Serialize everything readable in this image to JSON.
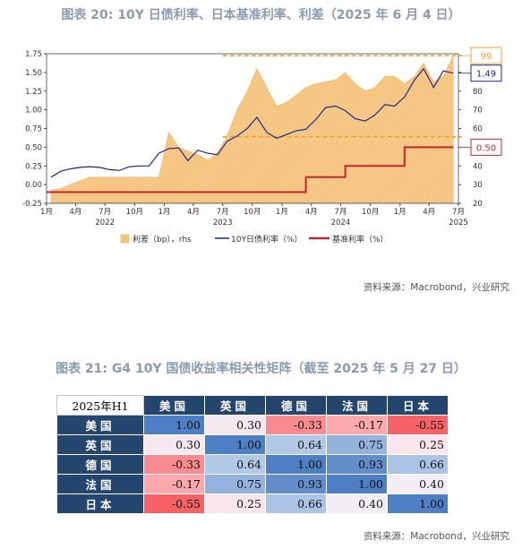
{
  "figure1": {
    "title": "图表 20: 10Y 日债利率、日本基准利率、利差（2025 年 6 月 4 日）",
    "source": "资料来源：Macrobond，兴业研究"
  },
  "figure2": {
    "title": "图表 21: G4 10Y 国债收益率相关性矩阵（截至 2025 年 5 月 27 日）",
    "source": "资料来源：Macrobond，兴业研究"
  },
  "chart_data": [
    {
      "type": "line",
      "x_axis": {
        "month_ticks": [
          "1月",
          "4月",
          "7月",
          "10月",
          "1月",
          "4月",
          "7月",
          "10月",
          "1月",
          "4月",
          "7月",
          "10月",
          "1月",
          "4月",
          "7月"
        ],
        "year_labels": [
          "2022",
          "2023",
          "2024",
          "2025"
        ],
        "range": [
          "2022-01",
          "2025-07"
        ]
      },
      "y_left": {
        "ticks": [
          "1.75",
          "1.50",
          "1.25",
          "1.00",
          "0.75",
          "0.50",
          "0.25",
          "0.00",
          "-0.25"
        ],
        "range": [
          -0.25,
          1.75
        ]
      },
      "y_right": {
        "ticks": [
          "90",
          "80",
          "70",
          "60",
          "50",
          "40",
          "30",
          "20"
        ],
        "range": [
          20,
          100
        ]
      },
      "series": [
        {
          "name": "利差（bp），rhs",
          "kind": "area",
          "axis": "right",
          "color": "#f5c47e",
          "x": [
            "2022-01",
            "2022-02",
            "2022-03",
            "2022-04",
            "2022-05",
            "2022-06",
            "2022-07",
            "2022-08",
            "2022-09",
            "2022-10",
            "2022-11",
            "2022-12",
            "2023-01",
            "2023-02",
            "2023-03",
            "2023-04",
            "2023-05",
            "2023-06",
            "2023-07",
            "2023-08",
            "2023-09",
            "2023-10",
            "2023-11",
            "2023-12",
            "2024-01",
            "2024-02",
            "2024-03",
            "2024-04",
            "2024-05",
            "2024-06",
            "2024-07",
            "2024-08",
            "2024-09",
            "2024-10",
            "2024-11",
            "2024-12",
            "2025-01",
            "2025-02",
            "2025-03",
            "2025-04",
            "2025-05",
            "2025-06"
          ],
          "values": [
            27,
            28,
            30,
            32,
            34,
            34,
            34,
            34,
            34,
            34,
            34,
            34,
            58,
            50,
            48,
            46,
            43,
            47,
            56,
            70,
            80,
            92,
            82,
            72,
            74,
            78,
            82,
            84,
            85,
            86,
            90,
            84,
            80,
            82,
            88,
            88,
            84,
            88,
            95,
            85,
            88,
            99
          ]
        },
        {
          "name": "10Y日债利率（%）",
          "kind": "line",
          "axis": "left",
          "color": "#1f2a8c",
          "x": [
            "2022-01",
            "2022-02",
            "2022-03",
            "2022-04",
            "2022-05",
            "2022-06",
            "2022-07",
            "2022-08",
            "2022-09",
            "2022-10",
            "2022-11",
            "2022-12",
            "2023-01",
            "2023-02",
            "2023-03",
            "2023-04",
            "2023-05",
            "2023-06",
            "2023-07",
            "2023-08",
            "2023-09",
            "2023-10",
            "2023-11",
            "2023-12",
            "2024-01",
            "2024-02",
            "2024-03",
            "2024-04",
            "2024-05",
            "2024-06",
            "2024-07",
            "2024-08",
            "2024-09",
            "2024-10",
            "2024-11",
            "2024-12",
            "2025-01",
            "2025-02",
            "2025-03",
            "2025-04",
            "2025-05",
            "2025-06"
          ],
          "values": [
            0.1,
            0.18,
            0.21,
            0.23,
            0.24,
            0.23,
            0.2,
            0.19,
            0.24,
            0.25,
            0.25,
            0.42,
            0.48,
            0.49,
            0.32,
            0.46,
            0.42,
            0.4,
            0.58,
            0.65,
            0.75,
            0.9,
            0.7,
            0.62,
            0.67,
            0.72,
            0.74,
            0.87,
            1.03,
            1.05,
            0.99,
            0.88,
            0.85,
            0.93,
            1.07,
            1.05,
            1.17,
            1.4,
            1.55,
            1.3,
            1.52,
            1.49
          ]
        },
        {
          "name": "基准利率（%）",
          "kind": "step",
          "axis": "left",
          "color": "#c0282d",
          "x": [
            "2022-01",
            "2024-03",
            "2024-07",
            "2025-01",
            "2025-06"
          ],
          "values": [
            -0.1,
            0.1,
            0.25,
            0.5,
            0.5
          ]
        }
      ],
      "annotations": [
        {
          "label": "99",
          "axis": "right",
          "value": 99,
          "color": "#f0a030"
        },
        {
          "label": "1.49",
          "axis": "left",
          "value": 1.49,
          "color": "#1f2a8c"
        },
        {
          "label": "0.50",
          "axis": "left",
          "value": 0.5,
          "color": "#c0282d"
        }
      ],
      "reference_lines": [
        {
          "axis": "right",
          "value": 99,
          "color": "#f0a030",
          "style": "dashed"
        },
        {
          "axis": "left",
          "value": 0.64,
          "color": "#f0a030",
          "style": "dashed"
        }
      ],
      "legend": "bottom"
    },
    {
      "type": "table",
      "corner_label": "2025年H1",
      "columns": [
        "美国",
        "英国",
        "德国",
        "法国",
        "日本"
      ],
      "rows": [
        {
          "label": "美国",
          "values": [
            "1.00",
            "0.30",
            "-0.33",
            "-0.17",
            "-0.55"
          ]
        },
        {
          "label": "英国",
          "values": [
            "0.30",
            "1.00",
            "0.64",
            "0.75",
            "0.25"
          ]
        },
        {
          "label": "德国",
          "values": [
            "-0.33",
            "0.64",
            "1.00",
            "0.93",
            "0.66"
          ]
        },
        {
          "label": "法国",
          "values": [
            "-0.17",
            "0.75",
            "0.93",
            "1.00",
            "0.40"
          ]
        },
        {
          "label": "日本",
          "values": [
            "-0.55",
            "0.25",
            "0.66",
            "0.40",
            "1.00"
          ]
        }
      ]
    }
  ]
}
